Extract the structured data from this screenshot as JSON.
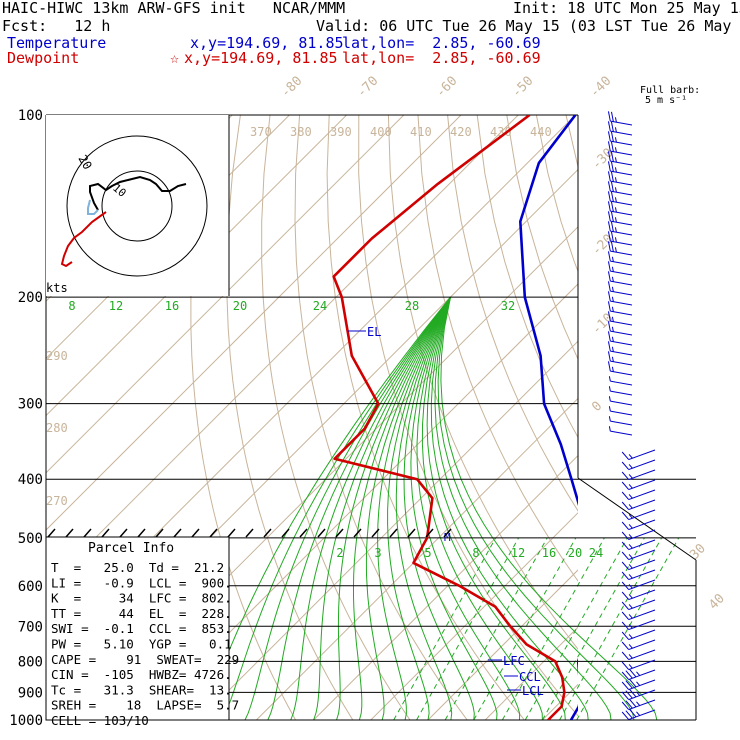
{
  "header": {
    "title": "HAIC-HIWC 13km ARW-GFS init   NCAR/MMM",
    "init": "Init: 18 UTC Mon 25 May 15",
    "fcst": "Fcst:   12 h",
    "valid": "Valid: 06 UTC Tue 26 May 15 (03 LST Tue 26 May 15)"
  },
  "legend": {
    "temperature": {
      "label": "Temperature",
      "xy": "x,y=194.69, 81.85",
      "latlon": "lat,lon=  2.85, -60.69",
      "color": "#0000cc"
    },
    "dewpoint": {
      "label": "Dewpoint",
      "mark": "☆",
      "xy": "x,y=194.69, 81.85",
      "latlon": "lat,lon=  2.85, -60.69",
      "color": "#d00000"
    }
  },
  "barb_legend": {
    "line1": "Full barb:",
    "line2": "5 m s⁻¹"
  },
  "hodograph": {
    "units": "kts",
    "ring_label": "20",
    "inner_label": "10"
  },
  "parcel_info": {
    "title": "Parcel Info",
    "rows": [
      "T  =   25.0  Td =  21.2",
      "LI =   -0.9  LCL =  900.",
      "K  =     34  LFC =  802.",
      "TT =     44  EL  =  228.",
      "SWI =  -0.1  CCL =  853.",
      "PW =   5.10  YGP =   0.1",
      "CAPE =    91  SWEAT=  229",
      "CIN =  -105  HWBZ= 4726.",
      "Tc =   31.3  SHEAR=  13.",
      "SREH =    18  LAPSE=  5.7",
      "CELL = 103/10"
    ]
  },
  "chart_data": {
    "type": "skew-t",
    "pressure_levels": [
      100,
      200,
      300,
      400,
      500,
      600,
      700,
      800,
      900,
      1000
    ],
    "isotherm_labels": [
      -80,
      -70,
      -60,
      -50,
      -40,
      -30,
      -20,
      -10,
      0,
      30,
      40
    ],
    "theta_e_labels": [
      370,
      380,
      390,
      400,
      410,
      420,
      430,
      440
    ],
    "theta_labels": [
      290,
      280,
      270
    ],
    "moist_adiabat_labels": [
      8,
      12,
      16,
      20,
      24,
      28,
      32
    ],
    "mixing_ratio_labels": [
      2,
      3,
      5,
      8,
      12,
      16,
      20,
      24
    ],
    "level_labels": [
      "EL",
      "LFC",
      "CCL",
      "LCL",
      "M"
    ],
    "series": [
      {
        "name": "Temperature",
        "color": "#0000cc",
        "points": [
          [
            100,
            -80
          ],
          [
            120,
            -78
          ],
          [
            150,
            -71
          ],
          [
            200,
            -57
          ],
          [
            250,
            -44
          ],
          [
            300,
            -35
          ],
          [
            350,
            -25
          ],
          [
            400,
            -17
          ],
          [
            450,
            -10
          ],
          [
            500,
            -5
          ],
          [
            550,
            0
          ],
          [
            600,
            5
          ],
          [
            650,
            8
          ],
          [
            700,
            11
          ],
          [
            750,
            14
          ],
          [
            800,
            16
          ],
          [
            850,
            19
          ],
          [
            900,
            22
          ],
          [
            950,
            24
          ],
          [
            1000,
            25
          ]
        ]
      },
      {
        "name": "Dewpoint",
        "color": "#d00000",
        "points": [
          [
            100,
            -88
          ],
          [
            130,
            -92
          ],
          [
            160,
            -94
          ],
          [
            185,
            -94
          ],
          [
            200,
            -89
          ],
          [
            250,
            -77
          ],
          [
            300,
            -64
          ],
          [
            330,
            -62
          ],
          [
            370,
            -62
          ],
          [
            400,
            -44
          ],
          [
            430,
            -38
          ],
          [
            500,
            -32
          ],
          [
            550,
            -30
          ],
          [
            600,
            -18
          ],
          [
            650,
            -8
          ],
          [
            700,
            -2
          ],
          [
            750,
            4
          ],
          [
            800,
            12
          ],
          [
            850,
            16
          ],
          [
            900,
            19
          ],
          [
            950,
            21
          ],
          [
            1000,
            21
          ]
        ]
      }
    ],
    "ylim": [
      100,
      1000
    ],
    "grid": true
  }
}
